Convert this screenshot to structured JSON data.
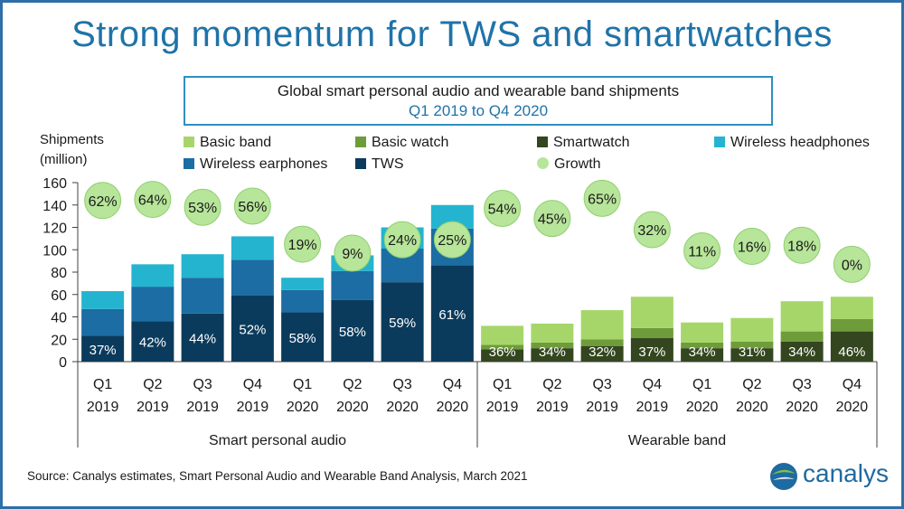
{
  "title": "Strong momentum for TWS and smartwatches",
  "subtitle": {
    "line1": "Global smart personal audio and wearable band shipments",
    "line2": "Q1 2019 to Q4 2020"
  },
  "ylabel_line1": "Shipments",
  "ylabel_line2": "(million)",
  "source": "Source: Canalys estimates, Smart Personal Audio and Wearable Band Analysis, March 2021",
  "logo_text": "canalys",
  "legend": [
    {
      "label": "Basic band",
      "color": "#a6d66a",
      "kind": "square"
    },
    {
      "label": "Basic watch",
      "color": "#6f9c3a",
      "kind": "square"
    },
    {
      "label": "Smartwatch",
      "color": "#33461f",
      "kind": "square"
    },
    {
      "label": "Wireless headphones",
      "color": "#24b4cf",
      "kind": "square"
    },
    {
      "label": "Wireless earphones",
      "color": "#1b6da3",
      "kind": "square"
    },
    {
      "label": "TWS",
      "color": "#0b3b5c",
      "kind": "square"
    },
    {
      "label": "Growth",
      "color": "#b7e59a",
      "kind": "dot"
    }
  ],
  "chart_data": {
    "type": "bar",
    "stacked": true,
    "ylim": [
      0,
      160
    ],
    "yticks": [
      0,
      20,
      40,
      60,
      80,
      100,
      120,
      140,
      160
    ],
    "groups": [
      {
        "name": "Smart personal audio",
        "categories": [
          "Q1 2019",
          "Q2 2019",
          "Q3 2019",
          "Q4 2019",
          "Q1 2020",
          "Q2 2020",
          "Q3 2020",
          "Q4 2020"
        ],
        "series": [
          {
            "name": "TWS",
            "color": "#0b3b5c",
            "values": [
              23,
              36,
              43,
              59,
              44,
              55,
              71,
              86
            ]
          },
          {
            "name": "Wireless earphones",
            "color": "#1b6da3",
            "values": [
              24,
              31,
              32,
              32,
              20,
              26,
              30,
              33
            ]
          },
          {
            "name": "Wireless headphones",
            "color": "#24b4cf",
            "values": [
              16,
              20,
              21,
              21,
              11,
              14,
              19,
              21
            ]
          }
        ],
        "share_labels": [
          "37%",
          "42%",
          "44%",
          "52%",
          "58%",
          "58%",
          "59%",
          "61%"
        ],
        "growth": [
          "62%",
          "64%",
          "53%",
          "56%",
          "19%",
          "9%",
          "24%",
          "25%"
        ],
        "growth_y": [
          144,
          145,
          138,
          139,
          105,
          97,
          109,
          109
        ]
      },
      {
        "name": "Wearable band",
        "categories": [
          "Q1 2019",
          "Q2 2019",
          "Q3 2019",
          "Q4 2019",
          "Q1 2020",
          "Q2 2020",
          "Q3 2020",
          "Q4 2020"
        ],
        "series": [
          {
            "name": "Smartwatch",
            "color": "#33461f",
            "values": [
              11,
              12,
              14,
              21,
              12,
              12,
              18,
              27
            ]
          },
          {
            "name": "Basic watch",
            "color": "#6f9c3a",
            "values": [
              4,
              5,
              6,
              9,
              5,
              6,
              9,
              11
            ]
          },
          {
            "name": "Basic band",
            "color": "#a6d66a",
            "values": [
              17,
              17,
              26,
              28,
              18,
              21,
              27,
              20
            ]
          }
        ],
        "share_labels": [
          "36%",
          "34%",
          "32%",
          "37%",
          "34%",
          "31%",
          "34%",
          "46%"
        ],
        "growth": [
          "54%",
          "45%",
          "65%",
          "32%",
          "11%",
          "16%",
          "18%",
          "0%"
        ],
        "growth_y": [
          137,
          128,
          146,
          118,
          99,
          103,
          104,
          87
        ]
      }
    ]
  }
}
